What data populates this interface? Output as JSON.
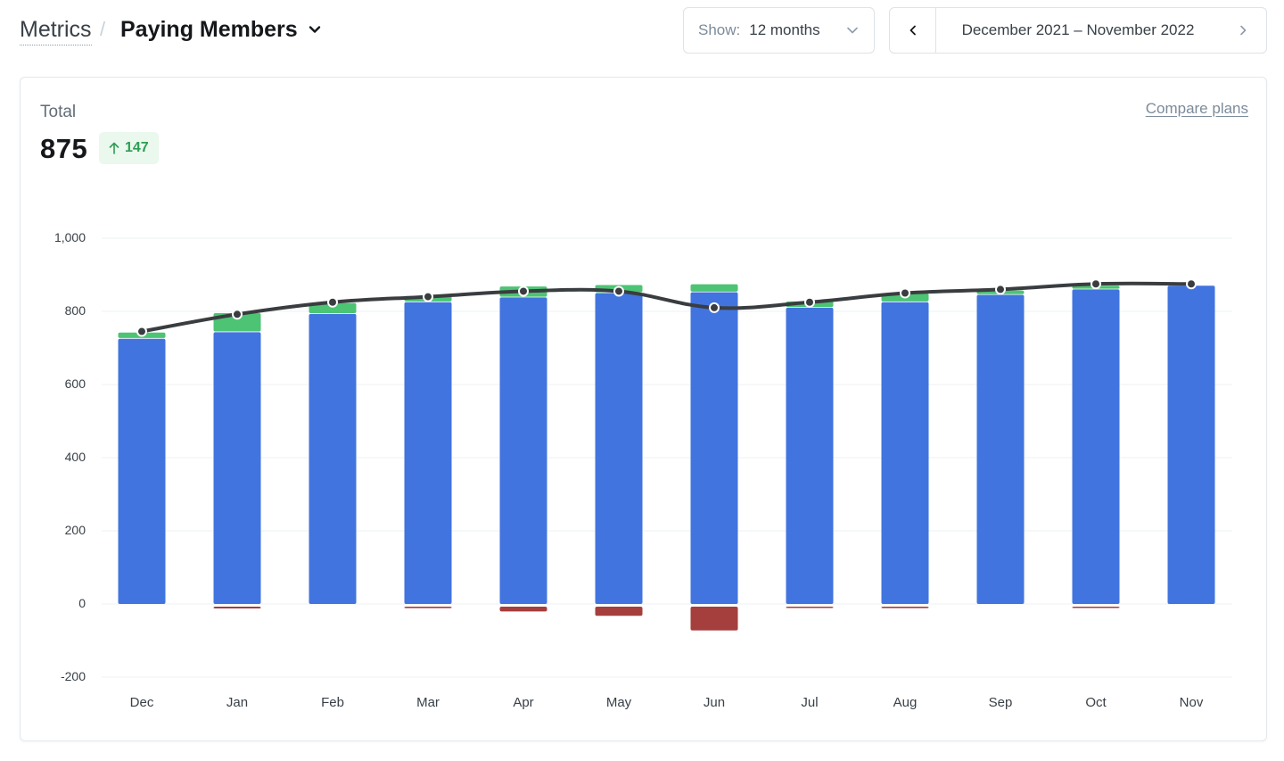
{
  "breadcrumb": {
    "root": "Metrics",
    "separator": "/",
    "current": "Paying Members"
  },
  "show_select": {
    "label": "Show:",
    "value": "12 months"
  },
  "date_range": {
    "text": "December 2021 – November 2022"
  },
  "total": {
    "label": "Total",
    "value": "875",
    "delta": "147"
  },
  "compare_link": "Compare plans",
  "colors": {
    "base": "#4174de",
    "new": "#4cc473",
    "cancelled": "#a43f3e",
    "line": "#3a3d40",
    "delta_bg": "#eaf8ee",
    "delta_fg": "#2d9e52"
  },
  "icons": {
    "breadcrumb_chevron": "chevron-down-icon",
    "select_chevron": "chevron-down-icon",
    "prev": "chevron-left-icon",
    "next": "chevron-right-icon",
    "delta_arrow": "arrow-up-icon"
  },
  "chart_data": {
    "type": "bar",
    "categories": [
      "Dec",
      "Jan",
      "Feb",
      "Mar",
      "Apr",
      "May",
      "Jun",
      "Jul",
      "Aug",
      "Sep",
      "Oct",
      "Nov"
    ],
    "ylim": [
      -200,
      1000
    ],
    "yticks": [
      -200,
      0,
      200,
      400,
      600,
      800,
      1000
    ],
    "ytick_labels": [
      "-200",
      "0",
      "200",
      "400",
      "600",
      "800",
      "1,000"
    ],
    "grid": true,
    "series": [
      {
        "type": "bar",
        "values": [
          725,
          743,
          793,
          825,
          838,
          850,
          852,
          810,
          825,
          845,
          860,
          870
        ]
      },
      {
        "type": "bar",
        "values": [
          15,
          50,
          28,
          15,
          28,
          20,
          20,
          15,
          22,
          10,
          8,
          0
        ]
      },
      {
        "type": "bar",
        "values": [
          0,
          -5,
          0,
          -4,
          -13,
          -25,
          -65,
          -3,
          -4,
          0,
          -3,
          0
        ]
      },
      {
        "type": "line",
        "values": [
          745,
          792,
          825,
          840,
          855,
          855,
          810,
          825,
          850,
          860,
          875,
          875
        ]
      }
    ]
  }
}
